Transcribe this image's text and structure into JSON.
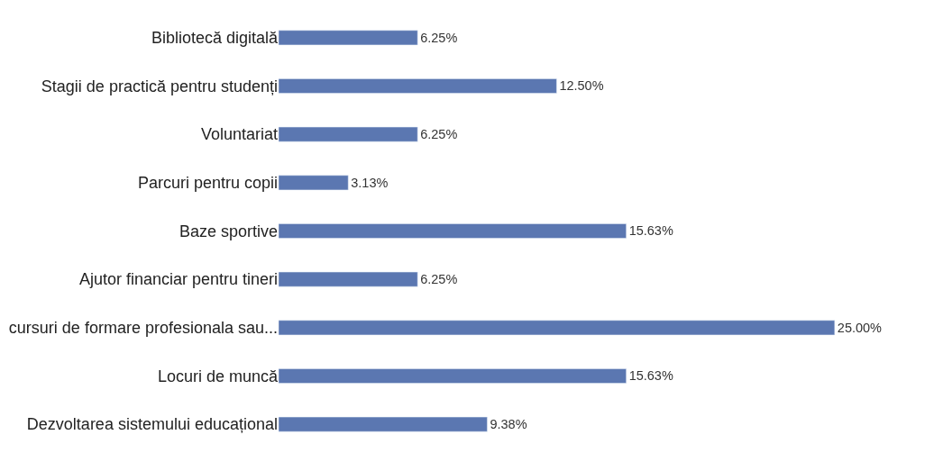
{
  "chart_data": {
    "type": "bar",
    "orientation": "horizontal",
    "categories": [
      "Bibliotecă digitală",
      "Stagii de practică pentru studenți",
      "Voluntariat",
      "Parcuri pentru copii",
      "Baze sportive",
      "Ajutor financiar pentru tineri",
      "cursuri de formare profesionala sau...",
      "Locuri de muncă",
      "Dezvoltarea sistemului educațional"
    ],
    "values": [
      6.25,
      12.5,
      6.25,
      3.13,
      15.63,
      6.25,
      25.0,
      15.63,
      9.38
    ],
    "value_labels": [
      "6.25%",
      "12.50%",
      "6.25%",
      "3.13%",
      "15.63%",
      "6.25%",
      "25.00%",
      "15.63%",
      "9.38%"
    ],
    "color": "#5b77b1",
    "tick_labels": "y"
  }
}
